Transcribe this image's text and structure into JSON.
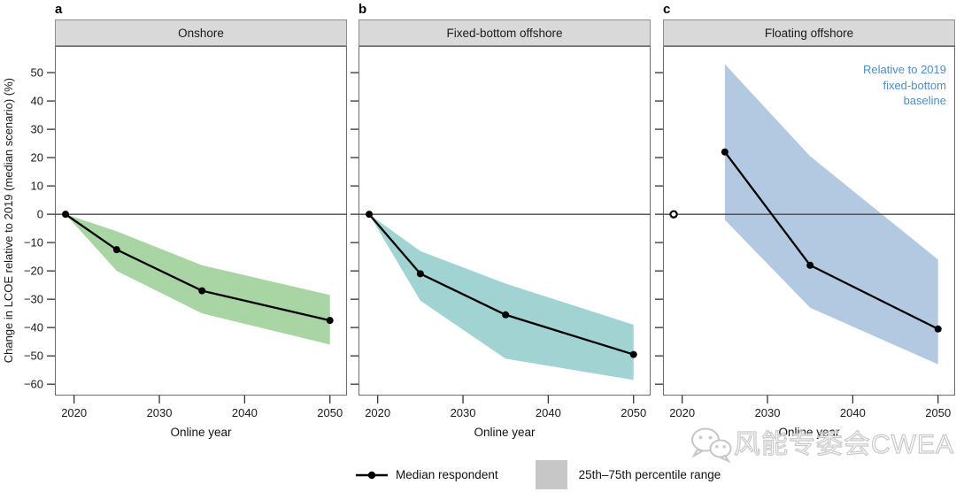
{
  "figure": {
    "ylabel": "Change in LCOE relative to 2019 (median scenario) (%)",
    "xlabel": "Online year"
  },
  "chart_data": [
    {
      "type": "line",
      "panel_letter": "a",
      "title": "Onshore",
      "xlabel": "Online year",
      "xlim": [
        2017.75,
        2052
      ],
      "ylim": [
        -64,
        59.4
      ],
      "x_ticks": [
        2020,
        2030,
        2040,
        2050
      ],
      "y_ticks": [
        50,
        40,
        30,
        20,
        10,
        0,
        -10,
        -20,
        -30,
        -40,
        -50,
        -60
      ],
      "show_y_tick_labels": true,
      "x": [
        2019,
        2025,
        2035,
        2050
      ],
      "series": [
        {
          "name": "Median respondent",
          "values": [
            0,
            -12.5,
            -27,
            -37.5
          ]
        }
      ],
      "band": {
        "name": "25th–75th percentile range",
        "x": [
          2019,
          2025,
          2035,
          2050
        ],
        "upper": [
          0,
          -6,
          -18,
          -28.5
        ],
        "lower": [
          0,
          -20,
          -35,
          -46
        ],
        "color": "#a9d4a3"
      }
    },
    {
      "type": "line",
      "panel_letter": "b",
      "title": "Fixed-bottom offshore",
      "xlabel": "Online year",
      "xlim": [
        2017.75,
        2052
      ],
      "ylim": [
        -64,
        59.4
      ],
      "x_ticks": [
        2020,
        2030,
        2040,
        2050
      ],
      "y_ticks": [
        50,
        40,
        30,
        20,
        10,
        0,
        -10,
        -20,
        -30,
        -40,
        -50,
        -60
      ],
      "show_y_tick_labels": false,
      "x": [
        2019,
        2025,
        2035,
        2050
      ],
      "series": [
        {
          "name": "Median respondent",
          "values": [
            0,
            -21,
            -35.5,
            -49.5
          ]
        }
      ],
      "band": {
        "name": "25th–75th percentile range",
        "x": [
          2019,
          2025,
          2035,
          2050
        ],
        "upper": [
          0,
          -13,
          -24.5,
          -39
        ],
        "lower": [
          0,
          -30.5,
          -51,
          -58.5
        ],
        "color": "#a0d3d1"
      }
    },
    {
      "type": "line",
      "panel_letter": "c",
      "title": "Floating offshore",
      "xlabel": "Online year",
      "xlim": [
        2017.75,
        2052
      ],
      "ylim": [
        -64,
        59.4
      ],
      "x_ticks": [
        2020,
        2030,
        2040,
        2050
      ],
      "y_ticks": [
        50,
        40,
        30,
        20,
        10,
        0,
        -10,
        -20,
        -30,
        -40,
        -50,
        -60
      ],
      "show_y_tick_labels": false,
      "baseline_point": {
        "x": 2019,
        "y": 0,
        "style": "open-circle"
      },
      "annotation": {
        "lines": [
          "Relative to 2019",
          "fixed-bottom",
          "baseline"
        ],
        "color": "#4d8fc6"
      },
      "x": [
        2025,
        2035,
        2050
      ],
      "series": [
        {
          "name": "Median respondent",
          "values": [
            22,
            -18,
            -40.5
          ]
        }
      ],
      "band": {
        "name": "25th–75th percentile range",
        "x": [
          2025,
          2035,
          2050
        ],
        "upper": [
          53,
          20.5,
          -16
        ],
        "lower": [
          -2,
          -33,
          -53
        ],
        "color": "#b3c9e2"
      }
    }
  ],
  "legend": {
    "median_label": "Median respondent",
    "range_label": "25th–75th percentile range",
    "range_swatch_color": "#c7c7c7"
  },
  "watermark": {
    "icon": "wechat-icon",
    "text": "风能专委会CWEA"
  },
  "colors": {
    "header_bg": "#d9d9d9",
    "annotation_blue": "#4d8fc6",
    "zero_line": "#4a4a4a",
    "median_line": "#000000"
  }
}
